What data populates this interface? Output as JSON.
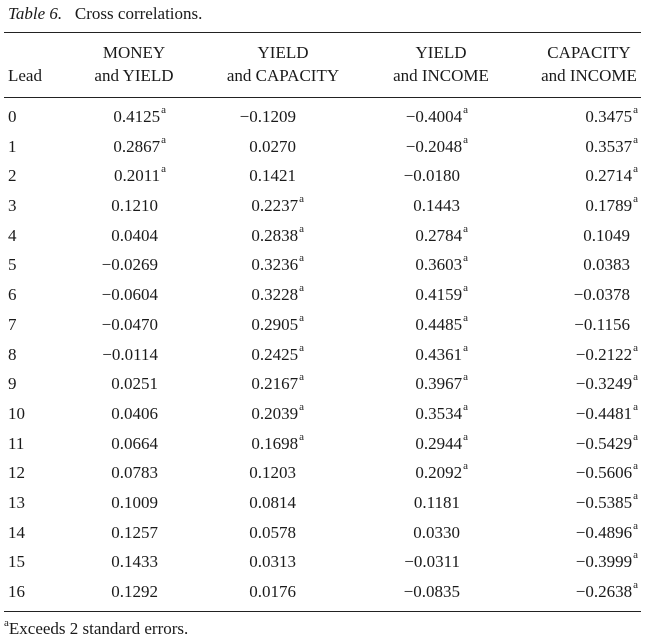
{
  "caption": {
    "tag": "Table 6.",
    "title": "Cross correlations."
  },
  "headers": {
    "lead": "Lead",
    "c1": [
      "MONEY",
      "and YIELD"
    ],
    "c2": [
      "YIELD",
      "and CAPACITY"
    ],
    "c3": [
      "YIELD",
      "and INCOME"
    ],
    "c4": [
      "CAPACITY",
      "and INCOME"
    ]
  },
  "rows": [
    {
      "lead": "0",
      "c1": "0.4125",
      "c1s": "a",
      "c2": "−0.1209",
      "c2s": "",
      "c3": "−0.4004",
      "c3s": "a",
      "c4": "0.3475",
      "c4s": "a"
    },
    {
      "lead": "1",
      "c1": "0.2867",
      "c1s": "a",
      "c2": "0.0270",
      "c2s": "",
      "c3": "−0.2048",
      "c3s": "a",
      "c4": "0.3537",
      "c4s": "a"
    },
    {
      "lead": "2",
      "c1": "0.2011",
      "c1s": "a",
      "c2": "0.1421",
      "c2s": "",
      "c3": "−0.0180",
      "c3s": "",
      "c4": "0.2714",
      "c4s": "a"
    },
    {
      "lead": "3",
      "c1": "0.1210",
      "c1s": "",
      "c2": "0.2237",
      "c2s": "a",
      "c3": "0.1443",
      "c3s": "",
      "c4": "0.1789",
      "c4s": "a"
    },
    {
      "lead": "4",
      "c1": "0.0404",
      "c1s": "",
      "c2": "0.2838",
      "c2s": "a",
      "c3": "0.2784",
      "c3s": "a",
      "c4": "0.1049",
      "c4s": ""
    },
    {
      "lead": "5",
      "c1": "−0.0269",
      "c1s": "",
      "c2": "0.3236",
      "c2s": "a",
      "c3": "0.3603",
      "c3s": "a",
      "c4": "0.0383",
      "c4s": ""
    },
    {
      "lead": "6",
      "c1": "−0.0604",
      "c1s": "",
      "c2": "0.3228",
      "c2s": "a",
      "c3": "0.4159",
      "c3s": "a",
      "c4": "−0.0378",
      "c4s": ""
    },
    {
      "lead": "7",
      "c1": "−0.0470",
      "c1s": "",
      "c2": "0.2905",
      "c2s": "a",
      "c3": "0.4485",
      "c3s": "a",
      "c4": "−0.1156",
      "c4s": ""
    },
    {
      "lead": "8",
      "c1": "−0.0114",
      "c1s": "",
      "c2": "0.2425",
      "c2s": "a",
      "c3": "0.4361",
      "c3s": "a",
      "c4": "−0.2122",
      "c4s": "a"
    },
    {
      "lead": "9",
      "c1": "0.0251",
      "c1s": "",
      "c2": "0.2167",
      "c2s": "a",
      "c3": "0.3967",
      "c3s": "a",
      "c4": "−0.3249",
      "c4s": "a"
    },
    {
      "lead": "10",
      "c1": "0.0406",
      "c1s": "",
      "c2": "0.2039",
      "c2s": "a",
      "c3": "0.3534",
      "c3s": "a",
      "c4": "−0.4481",
      "c4s": "a"
    },
    {
      "lead": "11",
      "c1": "0.0664",
      "c1s": "",
      "c2": "0.1698",
      "c2s": "a",
      "c3": "0.2944",
      "c3s": "a",
      "c4": "−0.5429",
      "c4s": "a"
    },
    {
      "lead": "12",
      "c1": "0.0783",
      "c1s": "",
      "c2": "0.1203",
      "c2s": "",
      "c3": "0.2092",
      "c3s": "a",
      "c4": "−0.5606",
      "c4s": "a"
    },
    {
      "lead": "13",
      "c1": "0.1009",
      "c1s": "",
      "c2": "0.0814",
      "c2s": "",
      "c3": "0.1181",
      "c3s": "",
      "c4": "−0.5385",
      "c4s": "a"
    },
    {
      "lead": "14",
      "c1": "0.1257",
      "c1s": "",
      "c2": "0.0578",
      "c2s": "",
      "c3": "0.0330",
      "c3s": "",
      "c4": "−0.4896",
      "c4s": "a"
    },
    {
      "lead": "15",
      "c1": "0.1433",
      "c1s": "",
      "c2": "0.0313",
      "c2s": "",
      "c3": "−0.0311",
      "c3s": "",
      "c4": "−0.3999",
      "c4s": "a"
    },
    {
      "lead": "16",
      "c1": "0.1292",
      "c1s": "",
      "c2": "0.0176",
      "c2s": "",
      "c3": "−0.0835",
      "c3s": "",
      "c4": "−0.2638",
      "c4s": "a"
    }
  ],
  "footnote": {
    "mark": "a",
    "text": "Exceeds 2 standard errors."
  }
}
